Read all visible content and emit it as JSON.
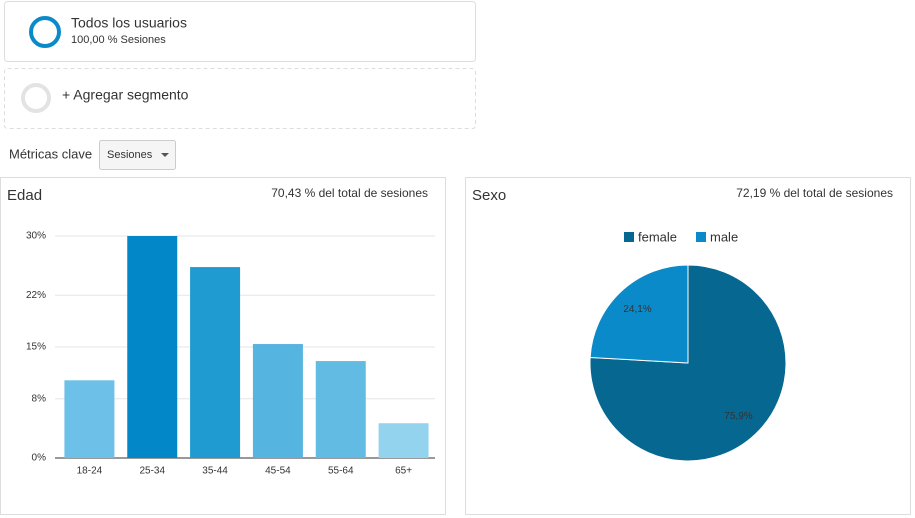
{
  "segments": [
    {
      "title": "Todos los usuarios",
      "subtitle": "100,00 % Sesiones"
    },
    {
      "title": "+ Agregar segmento"
    }
  ],
  "metrics": {
    "label": "Métricas clave",
    "dropdown": "Sesiones"
  },
  "chart_data": [
    {
      "type": "bar",
      "title": "Edad",
      "subtitle": "70,43 % del total de sesiones",
      "categories": [
        "18-24",
        "25-34",
        "35-44",
        "45-54",
        "55-64",
        "65+"
      ],
      "values": [
        10.5,
        30.0,
        25.8,
        15.4,
        13.1,
        4.7
      ],
      "colors": [
        "#6dc0e8",
        "#0288c9",
        "#1f9bd1",
        "#56b4e0",
        "#62bbe3",
        "#93d3ee"
      ],
      "ylim": [
        0,
        30
      ],
      "yticks": [
        {
          "value": 0,
          "label": "0%"
        },
        {
          "value": 8,
          "label": "8%"
        },
        {
          "value": 15,
          "label": "15%"
        },
        {
          "value": 22,
          "label": "22%"
        },
        {
          "value": 30,
          "label": "30%"
        }
      ],
      "grid": true
    },
    {
      "type": "pie",
      "title": "Sexo",
      "subtitle": "72,19 % del total de sesiones",
      "categories": [
        "female",
        "male"
      ],
      "values": [
        75.9,
        24.1
      ],
      "value_labels": [
        "75,9%",
        "24,1%"
      ],
      "colors": [
        "#066891",
        "#0a8ac8"
      ],
      "legend": "top"
    }
  ]
}
